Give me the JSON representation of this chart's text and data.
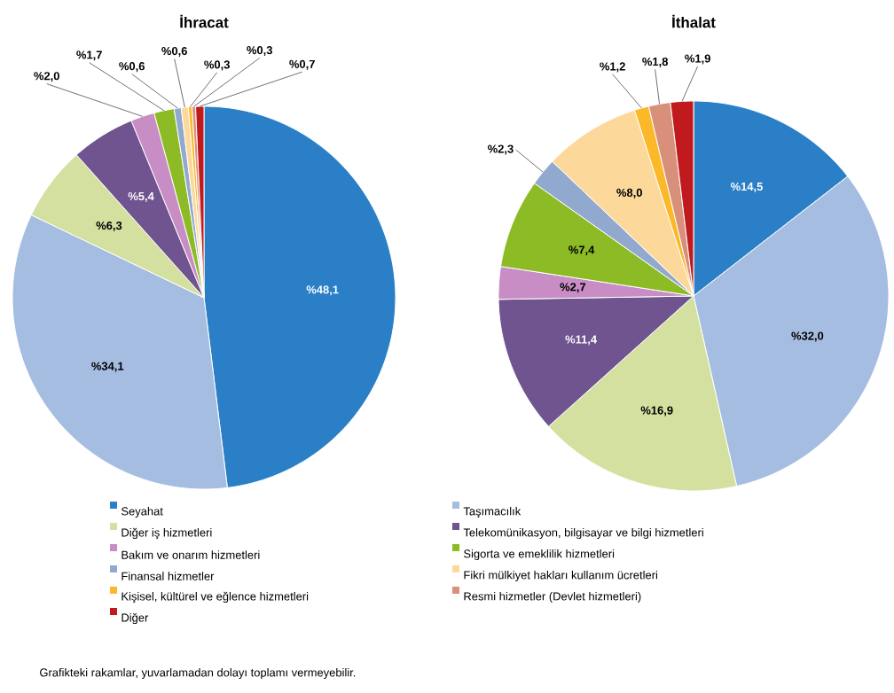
{
  "chart_data": [
    {
      "type": "pie",
      "title": "İhracat",
      "categories": [
        "Seyahat",
        "Taşımacılık",
        "Diğer iş hizmetleri",
        "Telekomünikasyon, bilgisayar ve bilgi hizmetleri",
        "Bakım ve onarım hizmetleri",
        "Sigorta ve emeklilik hizmetleri",
        "Finansal hizmetler",
        "Fikri mülkiyet hakları kullanım ücretleri",
        "Kişisel, kültürel ve eğlence hizmetleri",
        "Resmi hizmetler (Devlet hizmetleri)",
        "Diğer"
      ],
      "values": [
        48.1,
        34.1,
        6.3,
        5.4,
        2.0,
        1.7,
        0.6,
        0.6,
        0.3,
        0.3,
        0.7
      ],
      "value_labels": [
        "%48,1",
        "%34,1",
        "%6,3",
        "%5,4",
        "%2,0",
        "%1,7",
        "%0,6",
        "%0,6",
        "%0,3",
        "%0,3",
        "%0,7"
      ],
      "colors": [
        "#2a7fc6",
        "#a5bde0",
        "#d4e09f",
        "#6f548f",
        "#c88dc4",
        "#8cbb26",
        "#91a8cf",
        "#fcd99a",
        "#fbb829",
        "#d9907a",
        "#c0191e"
      ],
      "legend": "bottom",
      "annotations": [
        "Grafikteki rakamlar, yuvarlamadan dolayı toplamı vermeyebilir."
      ]
    },
    {
      "type": "pie",
      "title": "İthalat",
      "values": [
        14.5,
        32.0,
        16.9,
        11.4,
        2.7,
        7.4,
        2.3,
        8.0,
        1.2,
        1.8,
        1.9
      ],
      "categories": [
        null,
        null,
        null,
        null,
        null,
        null,
        null,
        null,
        null,
        null,
        null
      ],
      "value_labels": [
        "%14,5",
        "%32,0",
        "%16,9",
        "%11,4",
        "%2,7",
        "%7,4",
        "%2,3",
        "%8,0",
        "%1,2",
        "%1,8",
        "%1,9"
      ],
      "colors": [
        "#2a7fc6",
        "#a5bde0",
        "#d4e09f",
        "#6f548f",
        "#c88dc4",
        "#8cbb26",
        "#91a8cf",
        "#fcd99a",
        "#fbb829",
        "#d9907a",
        "#c0191e"
      ]
    }
  ]
}
